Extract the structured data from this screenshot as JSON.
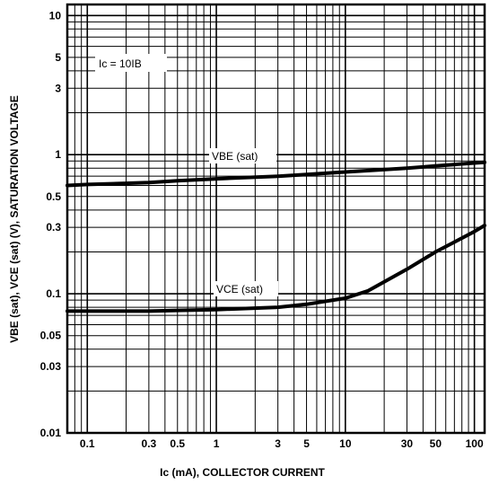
{
  "chart_data": {
    "type": "line",
    "title": "",
    "xlabel": "Ic (mA), COLLECTOR CURRENT",
    "ylabel": "VBE (sat), VCE (sat) (V), SATURATION VOLTAGE",
    "x_scale": "log",
    "y_scale": "log",
    "xlim": [
      0.07,
      120
    ],
    "ylim": [
      0.01,
      12
    ],
    "grid": true,
    "x_ticks": [
      "0.1",
      "0.3",
      "0.5",
      "1",
      "3",
      "5",
      "10",
      "30",
      "50",
      "100"
    ],
    "x_tick_values": [
      0.1,
      0.3,
      0.5,
      1,
      3,
      5,
      10,
      30,
      50,
      100
    ],
    "y_ticks": [
      "10",
      "5",
      "3",
      "1",
      "0.5",
      "0.3",
      "0.1",
      "0.05",
      "0.03",
      "0.01"
    ],
    "y_tick_values": [
      10,
      5,
      3,
      1,
      0.5,
      0.3,
      0.1,
      0.05,
      0.03,
      0.01
    ],
    "annotation": "Ic = 10IB",
    "series": [
      {
        "name": "VBE (sat)",
        "x": [
          0.07,
          0.1,
          0.3,
          0.5,
          1,
          3,
          5,
          10,
          30,
          50,
          100,
          120
        ],
        "y": [
          0.6,
          0.61,
          0.63,
          0.65,
          0.67,
          0.7,
          0.72,
          0.75,
          0.8,
          0.83,
          0.87,
          0.88
        ]
      },
      {
        "name": "VCE (sat)",
        "x": [
          0.07,
          0.1,
          0.3,
          0.5,
          1,
          3,
          5,
          10,
          15,
          30,
          50,
          100,
          120
        ],
        "y": [
          0.075,
          0.075,
          0.075,
          0.076,
          0.077,
          0.08,
          0.084,
          0.093,
          0.105,
          0.15,
          0.2,
          0.28,
          0.31
        ]
      }
    ]
  }
}
